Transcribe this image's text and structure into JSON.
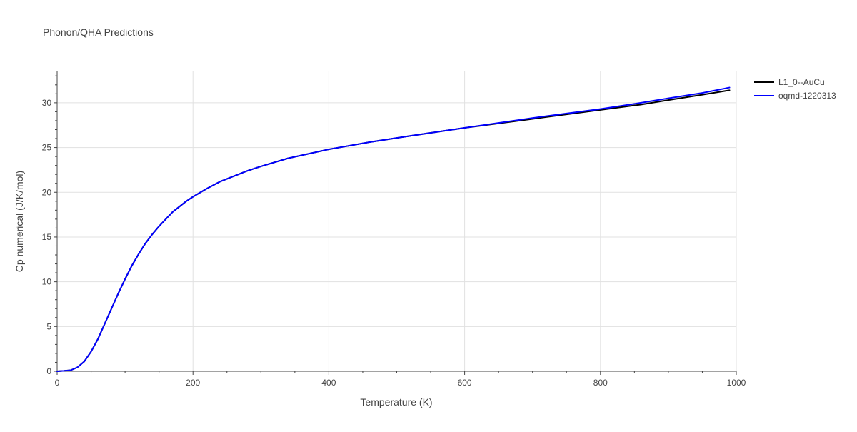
{
  "chart_data": {
    "type": "line",
    "title": "Phonon/QHA Predictions",
    "xlabel": "Temperature (K)",
    "ylabel": "Cp numerical (J/K/mol)",
    "xlim": [
      0,
      1000
    ],
    "ylim": [
      0,
      33.5
    ],
    "x_ticks": [
      0,
      200,
      400,
      600,
      800,
      1000
    ],
    "y_ticks": [
      0,
      5,
      10,
      15,
      20,
      25,
      30
    ],
    "grid": true,
    "legend_position": "top-right",
    "series": [
      {
        "name": "L1_0--AuCu",
        "color": "#000000",
        "x": [
          0,
          10,
          20,
          30,
          40,
          50,
          60,
          70,
          80,
          90,
          100,
          110,
          120,
          130,
          140,
          150,
          160,
          170,
          180,
          190,
          200,
          220,
          240,
          260,
          280,
          300,
          340,
          400,
          460,
          520,
          600,
          700,
          800,
          860,
          900,
          950,
          990
        ],
        "y": [
          0,
          0.05,
          0.12,
          0.45,
          1.1,
          2.2,
          3.6,
          5.3,
          7.0,
          8.7,
          10.3,
          11.8,
          13.1,
          14.3,
          15.3,
          16.2,
          17.0,
          17.8,
          18.4,
          19.0,
          19.5,
          20.4,
          21.2,
          21.8,
          22.4,
          22.9,
          23.8,
          24.8,
          25.6,
          26.3,
          27.2,
          28.2,
          29.2,
          29.8,
          30.3,
          30.9,
          31.4
        ]
      },
      {
        "name": "oqmd-1220313",
        "color": "#0000ff",
        "x": [
          0,
          10,
          20,
          30,
          40,
          50,
          60,
          70,
          80,
          90,
          100,
          110,
          120,
          130,
          140,
          150,
          160,
          170,
          180,
          190,
          200,
          220,
          240,
          260,
          280,
          300,
          340,
          400,
          460,
          520,
          600,
          700,
          800,
          860,
          900,
          950,
          990
        ],
        "y": [
          0,
          0.05,
          0.12,
          0.45,
          1.1,
          2.2,
          3.6,
          5.3,
          7.0,
          8.7,
          10.3,
          11.8,
          13.1,
          14.3,
          15.3,
          16.2,
          17.0,
          17.8,
          18.4,
          19.0,
          19.5,
          20.4,
          21.2,
          21.8,
          22.4,
          22.9,
          23.8,
          24.8,
          25.6,
          26.3,
          27.2,
          28.3,
          29.3,
          30.0,
          30.5,
          31.1,
          31.7
        ]
      }
    ]
  }
}
